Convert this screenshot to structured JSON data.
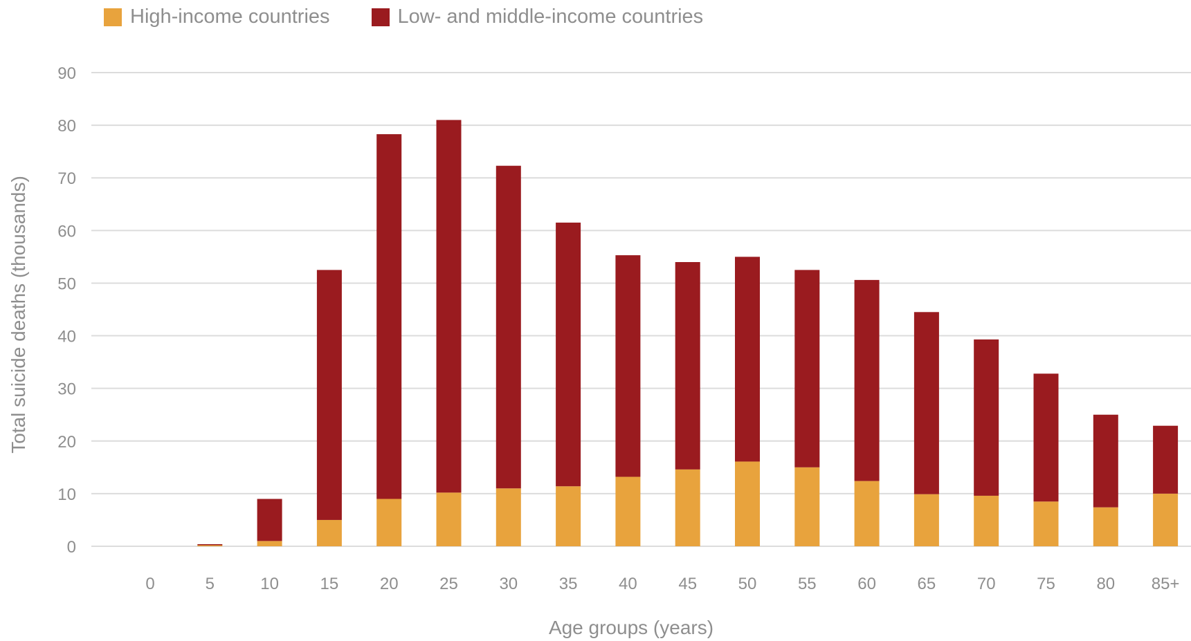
{
  "chart_data": {
    "type": "bar",
    "stacked": true,
    "categories": [
      "0",
      "5",
      "10",
      "15",
      "20",
      "25",
      "30",
      "35",
      "40",
      "45",
      "50",
      "55",
      "60",
      "65",
      "70",
      "75",
      "80",
      "85+"
    ],
    "series": [
      {
        "name": "High-income countries",
        "color": "#E8A33D",
        "values": [
          0,
          0.2,
          1.0,
          5.0,
          9.0,
          10.2,
          11.0,
          11.4,
          13.2,
          14.6,
          16.1,
          15.0,
          12.4,
          9.9,
          9.6,
          8.5,
          7.4,
          10.0
        ]
      },
      {
        "name": "Low- and middle-income countries",
        "color": "#9A1B1F",
        "values": [
          0,
          0.2,
          8.0,
          47.5,
          69.3,
          70.8,
          61.3,
          50.1,
          42.1,
          39.4,
          38.9,
          37.5,
          38.2,
          34.6,
          29.7,
          24.3,
          17.6,
          12.9
        ]
      }
    ],
    "xlabel": "Age groups (years)",
    "ylabel": "Total suicide deaths (thousands)",
    "ylim": [
      0,
      90
    ],
    "yticks": [
      0,
      10,
      20,
      30,
      40,
      50,
      60,
      70,
      80,
      90
    ],
    "grid": true,
    "legend_position": "top-left"
  }
}
